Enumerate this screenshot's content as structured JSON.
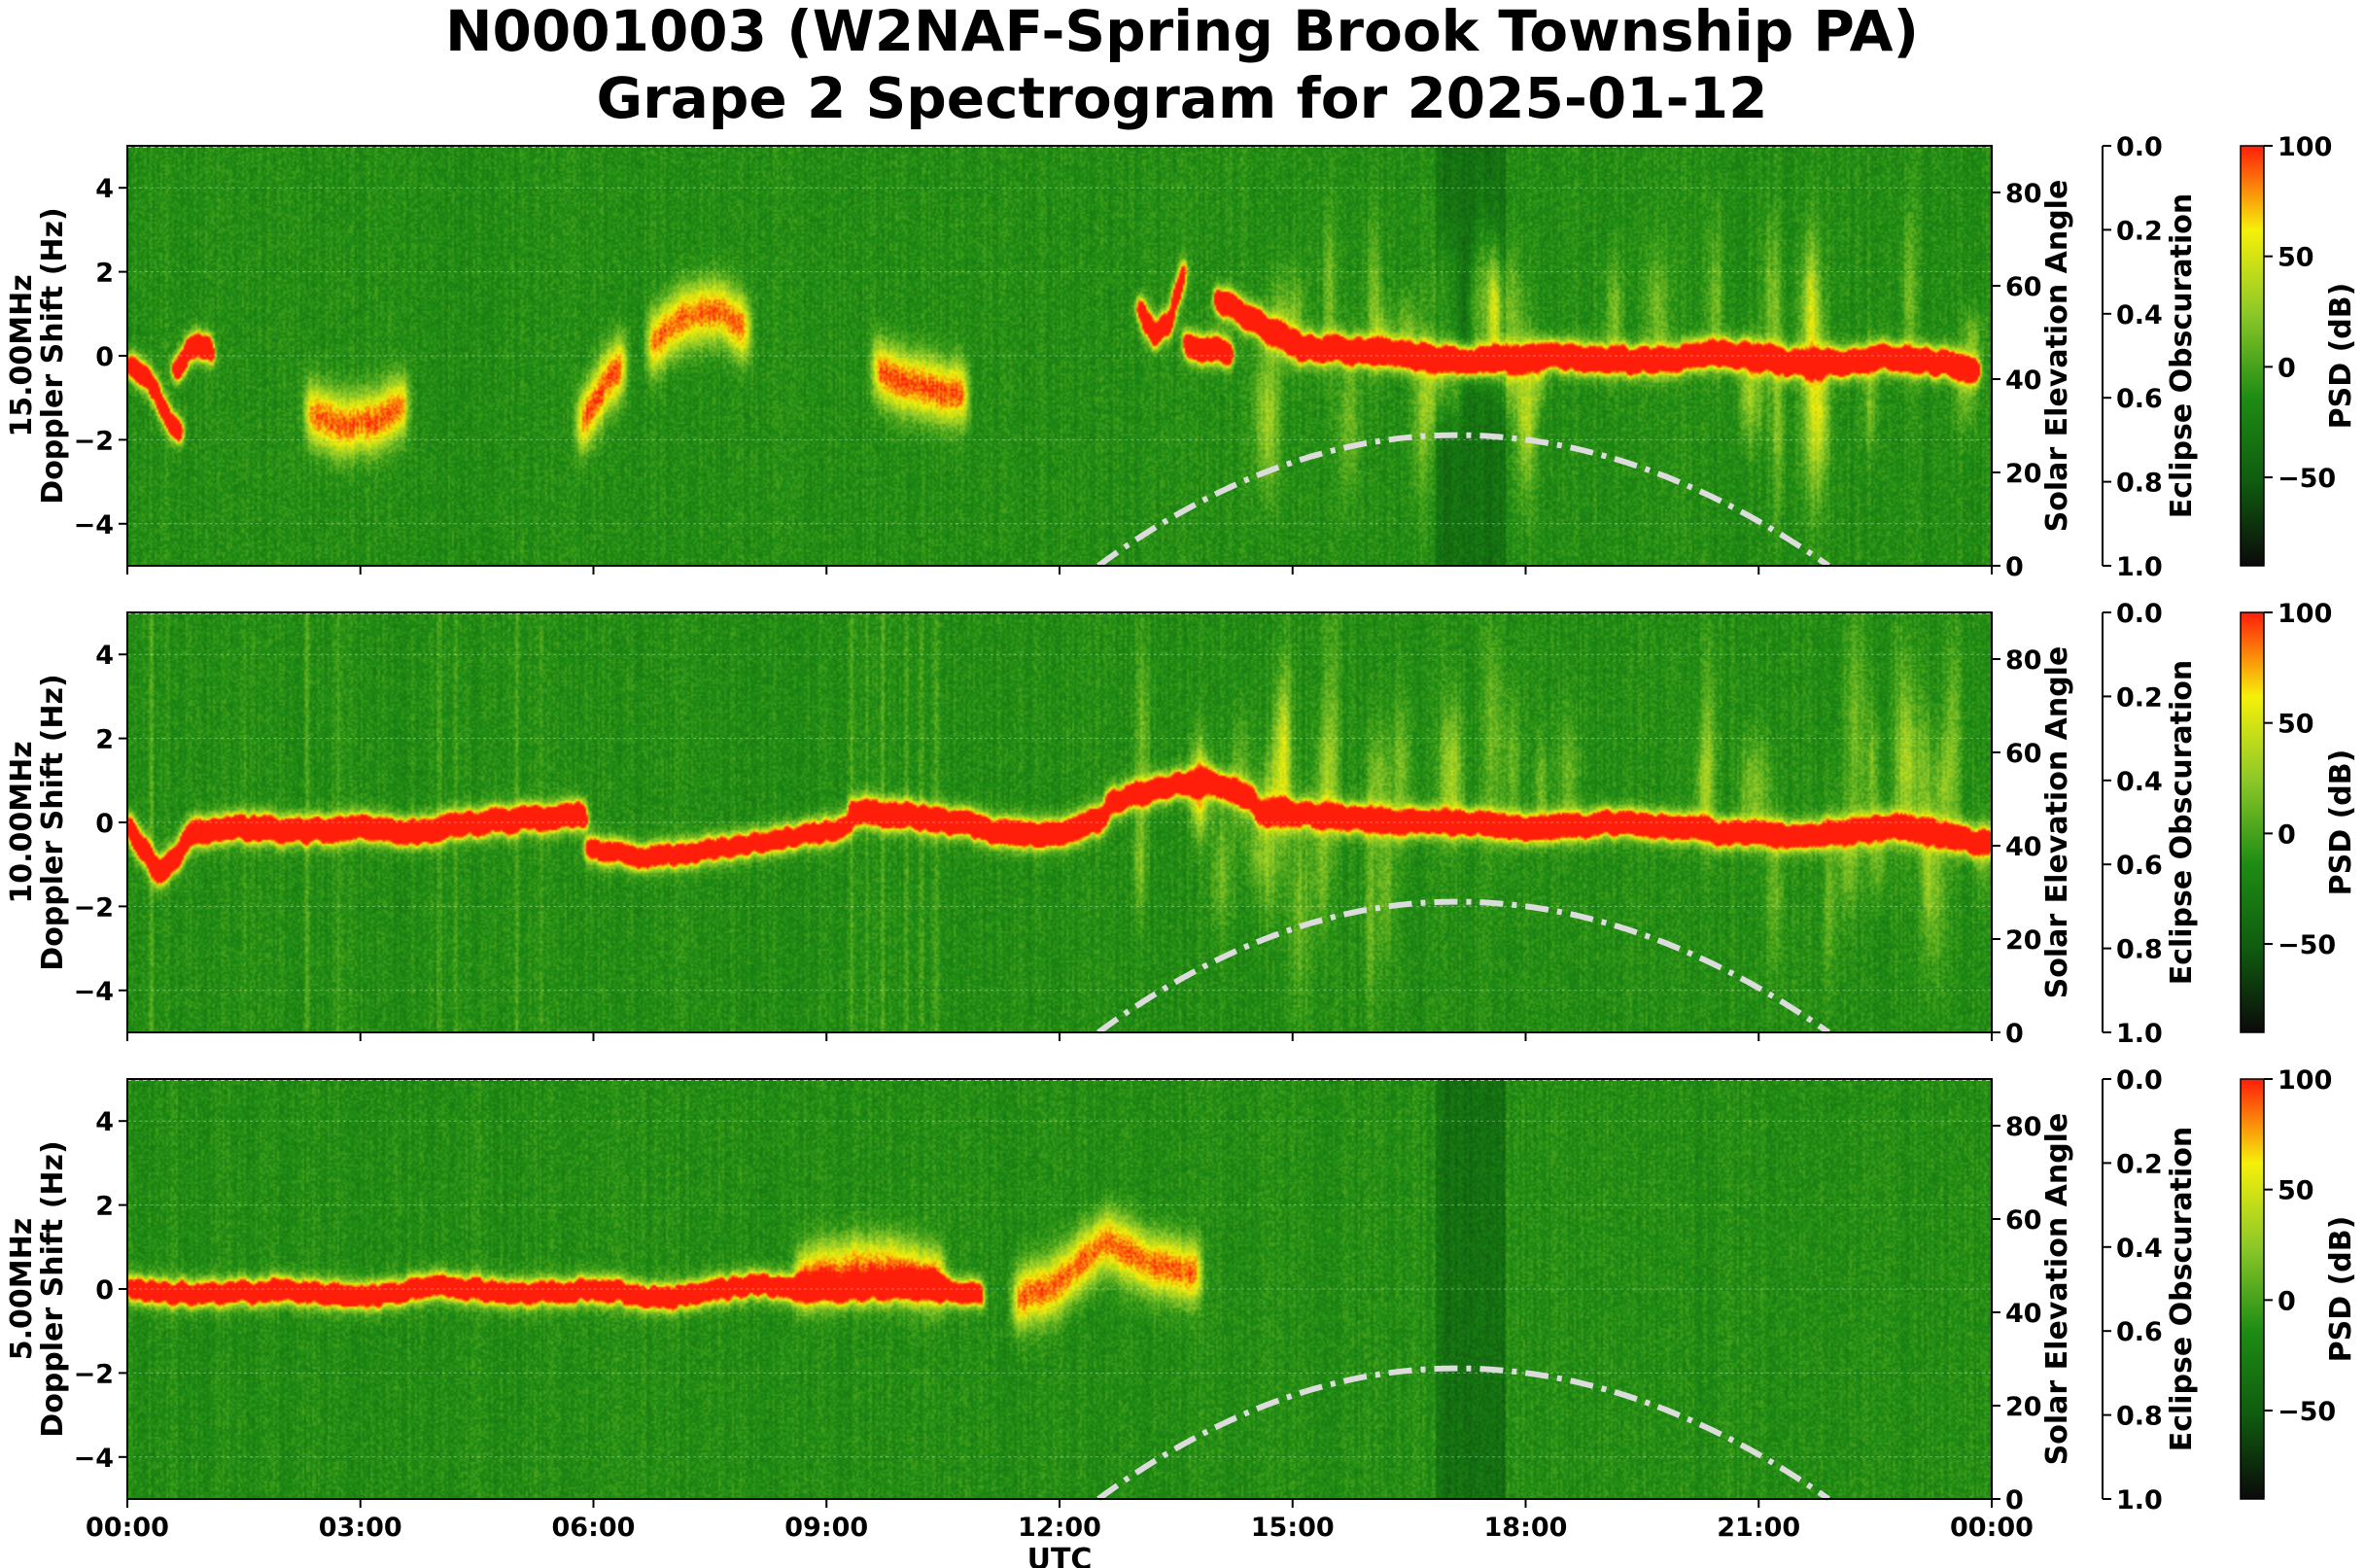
{
  "title": {
    "line1": "N0001003 (W2NAF-Spring Brook Township PA)",
    "line2": "Grape 2 Spectrogram for 2025-01-12"
  },
  "colors": {
    "cmap": [
      "#0a0a0a",
      "#0f5c0f",
      "#1e8c14",
      "#8cc828",
      "#f5f00a",
      "#ff1e0a"
    ],
    "elevation_curve": "#dcdcdc"
  },
  "chart_data": [
    {
      "type": "heatmap",
      "panel_label": "15.00MHz",
      "ylabel": "Doppler Shift (Hz)",
      "xlabel": "",
      "ylim": [
        -5,
        5
      ],
      "yticks": [
        4,
        2,
        0,
        -2,
        -4
      ],
      "xlim_hours": [
        0,
        24
      ],
      "xticks": [
        "00:00",
        "03:00",
        "06:00",
        "09:00",
        "12:00",
        "15:00",
        "18:00",
        "21:00",
        "00:00"
      ],
      "show_xticklabels": false,
      "secondary_y": {
        "label": "Solar Elevation Angle",
        "ylim": [
          0,
          90
        ],
        "ticks": [
          0,
          20,
          40,
          60,
          80
        ]
      },
      "tertiary_y": {
        "label": "Eclipse Obscuration",
        "ylim": [
          1.0,
          0.0
        ],
        "ticks": [
          "0.0",
          "0.2",
          "0.4",
          "0.6",
          "0.8",
          "1.0"
        ]
      },
      "colorbar": {
        "label": "PSD (dB)",
        "vmin": -90,
        "vmax": 100,
        "ticks": [
          100,
          50,
          0,
          -50
        ]
      },
      "solar_elevation": {
        "peak_hour": 17.1,
        "peak_deg": 28,
        "sunrise_hour": 12.5,
        "sunset_hour": 21.9
      },
      "dark_band_hours": [
        16.85,
        17.75
      ],
      "features": [
        {
          "kind": "trace",
          "t0": 0.0,
          "t1": 0.7,
          "f": [
            -0.2,
            -0.4,
            -0.8,
            -1.6,
            -1.8
          ],
          "intensity": 0.75
        },
        {
          "kind": "trace",
          "t0": 0.6,
          "t1": 1.1,
          "f": [
            -0.4,
            0.1,
            0.3,
            0.1
          ],
          "intensity": 0.85
        },
        {
          "kind": "blob",
          "t0": 2.3,
          "t1": 3.6,
          "f": [
            -1.3,
            -1.7,
            -1.5,
            -1.1
          ],
          "intensity": 0.6
        },
        {
          "kind": "blob",
          "t0": 5.8,
          "t1": 6.4,
          "f": [
            -1.7,
            -1.1,
            -0.5,
            -0.2
          ],
          "intensity": 0.65
        },
        {
          "kind": "blob",
          "t0": 6.7,
          "t1": 8.0,
          "f": [
            0.2,
            0.9,
            1.1,
            0.6
          ],
          "intensity": 0.6
        },
        {
          "kind": "blob",
          "t0": 9.6,
          "t1": 10.8,
          "f": [
            -0.3,
            -0.6,
            -0.8,
            -1.0
          ],
          "intensity": 0.62
        },
        {
          "kind": "trace",
          "t0": 13.0,
          "t1": 13.6,
          "f": [
            1.2,
            0.5,
            0.8,
            2.2
          ],
          "intensity": 0.8
        },
        {
          "kind": "trace",
          "t0": 13.6,
          "t1": 14.2,
          "f": [
            0.3,
            0.1,
            0.2,
            0.1
          ],
          "intensity": 0.85
        },
        {
          "kind": "trace",
          "t0": 14.0,
          "t1": 23.8,
          "f": [
            1.4,
            0.2,
            0.1,
            -0.1,
            0.0,
            -0.1,
            0.1,
            -0.2,
            0.0,
            -0.3
          ],
          "intensity": 0.95
        },
        {
          "kind": "spikes",
          "t0": 14.0,
          "t1": 23.8,
          "count": 40,
          "spread": 2.4,
          "intensity": 0.7
        }
      ]
    },
    {
      "type": "heatmap",
      "panel_label": "10.00MHz",
      "ylabel": "Doppler Shift (Hz)",
      "xlabel": "",
      "ylim": [
        -5,
        5
      ],
      "yticks": [
        4,
        2,
        0,
        -2,
        -4
      ],
      "xlim_hours": [
        0,
        24
      ],
      "xticks": [
        "00:00",
        "03:00",
        "06:00",
        "09:00",
        "12:00",
        "15:00",
        "18:00",
        "21:00",
        "00:00"
      ],
      "show_xticklabels": false,
      "secondary_y": {
        "label": "Solar Elevation Angle",
        "ylim": [
          0,
          90
        ],
        "ticks": [
          0,
          20,
          40,
          60,
          80
        ]
      },
      "tertiary_y": {
        "label": "Eclipse Obscuration",
        "ylim": [
          1.0,
          0.0
        ],
        "ticks": [
          "0.0",
          "0.2",
          "0.4",
          "0.6",
          "0.8",
          "1.0"
        ]
      },
      "colorbar": {
        "label": "PSD (dB)",
        "vmin": -90,
        "vmax": 100,
        "ticks": [
          100,
          50,
          0,
          -50
        ]
      },
      "solar_elevation": {
        "peak_hour": 17.1,
        "peak_deg": 28,
        "sunrise_hour": 12.5,
        "sunset_hour": 21.9
      },
      "dark_band_hours": [],
      "features": [
        {
          "kind": "trace",
          "t0": 0.0,
          "t1": 0.8,
          "f": [
            -0.1,
            -0.6,
            -1.2,
            -0.9,
            -0.2
          ],
          "intensity": 0.9
        },
        {
          "kind": "trace",
          "t0": 0.8,
          "t1": 5.9,
          "f": [
            -0.2,
            -0.1,
            -0.2,
            -0.1,
            -0.2,
            0.0,
            0.1,
            0.2
          ],
          "intensity": 0.85
        },
        {
          "kind": "trace",
          "t0": 5.9,
          "t1": 9.3,
          "f": [
            -0.6,
            -0.8,
            -0.7,
            -0.5,
            -0.3,
            -0.1
          ],
          "intensity": 0.6
        },
        {
          "kind": "trace",
          "t0": 9.3,
          "t1": 12.6,
          "f": [
            0.3,
            0.2,
            0.1,
            -0.1,
            -0.3,
            -0.2,
            0.1
          ],
          "intensity": 0.9
        },
        {
          "kind": "trace",
          "t0": 12.6,
          "t1": 14.5,
          "f": [
            0.5,
            0.8,
            1.0,
            0.6
          ],
          "intensity": 0.75
        },
        {
          "kind": "trace",
          "t0": 14.5,
          "t1": 24.0,
          "f": [
            0.3,
            0.1,
            0.0,
            -0.1,
            0.0,
            -0.2,
            -0.3,
            -0.1,
            -0.5
          ],
          "intensity": 0.8
        },
        {
          "kind": "spikes",
          "t0": 13.0,
          "t1": 24.0,
          "count": 45,
          "spread": 3.2,
          "intensity": 0.65
        },
        {
          "kind": "vlines",
          "hours": [
            0.3,
            1.5,
            2.3,
            2.7,
            4.0,
            4.2,
            5.0,
            5.3,
            9.3,
            9.5,
            9.7,
            10.0,
            10.2,
            10.4
          ],
          "intensity": 0.45
        }
      ]
    },
    {
      "type": "heatmap",
      "panel_label": "5.00MHz",
      "ylabel": "Doppler Shift (Hz)",
      "xlabel": "UTC",
      "ylim": [
        -5,
        5
      ],
      "yticks": [
        4,
        2,
        0,
        -2,
        -4
      ],
      "xlim_hours": [
        0,
        24
      ],
      "xticks": [
        "00:00",
        "03:00",
        "06:00",
        "09:00",
        "12:00",
        "15:00",
        "18:00",
        "21:00",
        "00:00"
      ],
      "show_xticklabels": true,
      "secondary_y": {
        "label": "Solar Elevation Angle",
        "ylim": [
          0,
          90
        ],
        "ticks": [
          0,
          20,
          40,
          60,
          80
        ]
      },
      "tertiary_y": {
        "label": "Eclipse Obscuration",
        "ylim": [
          1.0,
          0.0
        ],
        "ticks": [
          "0.0",
          "0.2",
          "0.4",
          "0.6",
          "0.8",
          "1.0"
        ]
      },
      "colorbar": {
        "label": "PSD (dB)",
        "vmin": -90,
        "vmax": 100,
        "ticks": [
          100,
          50,
          0,
          -50
        ]
      },
      "solar_elevation": {
        "peak_hour": 17.1,
        "peak_deg": 28,
        "sunrise_hour": 12.5,
        "sunset_hour": 21.9
      },
      "dark_band_hours": [
        16.85,
        17.75
      ],
      "features": [
        {
          "kind": "trace",
          "t0": 0.0,
          "t1": 11.0,
          "f": [
            0.0,
            -0.1,
            0.0,
            -0.2,
            0.1,
            -0.1,
            0.0,
            -0.2,
            0.1,
            0.0,
            0.1,
            -0.1
          ],
          "intensity": 0.65
        },
        {
          "kind": "blob",
          "t0": 8.6,
          "t1": 10.5,
          "f": [
            0.2,
            0.6,
            0.5,
            0.2
          ],
          "intensity": 0.55
        },
        {
          "kind": "blob",
          "t0": 11.4,
          "t1": 13.8,
          "f": [
            -0.3,
            0.2,
            1.2,
            0.6,
            0.4
          ],
          "intensity": 0.6
        }
      ]
    }
  ]
}
